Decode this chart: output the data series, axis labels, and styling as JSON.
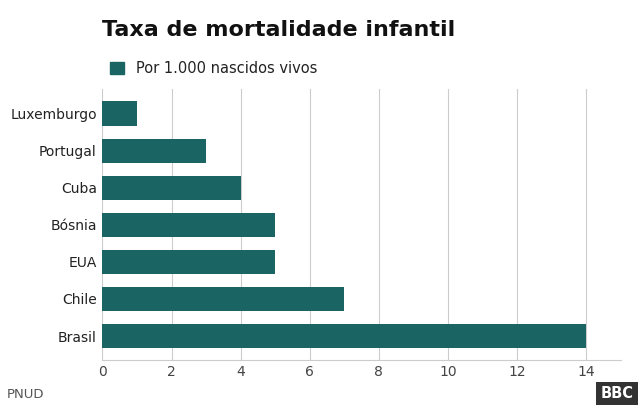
{
  "title": "Taxa de mortalidade infantil",
  "legend_label": "Por 1.000 nascidos vivos",
  "categories": [
    "Brasil",
    "Chile",
    "EUA",
    "Bósnia",
    "Cuba",
    "Portugal",
    "Luxemburgo"
  ],
  "values": [
    14,
    7,
    5,
    5,
    4,
    3,
    1
  ],
  "bar_color": "#1a6464",
  "background_color": "#ffffff",
  "plot_bg_color": "#ffffff",
  "xlim": [
    0,
    15
  ],
  "xticks": [
    0,
    2,
    4,
    6,
    8,
    10,
    12,
    14
  ],
  "source_label": "PNUD",
  "bbc_label": "BBC",
  "title_fontsize": 16,
  "legend_fontsize": 10.5,
  "tick_fontsize": 10,
  "source_fontsize": 9.5
}
